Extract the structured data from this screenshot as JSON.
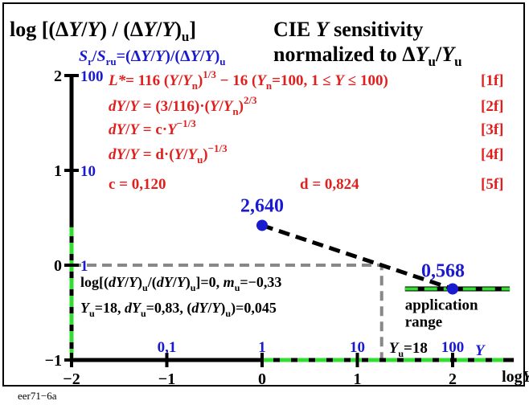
{
  "chart_data": {
    "type": "line",
    "title_left": "log [(ΔY/Y) / (ΔY/Y)u]",
    "title_right_1": "CIE Y sensitivity",
    "title_right_2": "normalized to ΔYu/Yu",
    "ylabel_inner": "Sr/Sru=(ΔY/Y)/(ΔY/Y)u",
    "xlabel": "log Y",
    "x_ticks": [
      "−2",
      "−1",
      "0",
      "1",
      "2"
    ],
    "y_ticks": [
      "2",
      "1",
      "0",
      "−1"
    ],
    "x_linear_ticks": [
      "0,1",
      "1",
      "10",
      "100"
    ],
    "x_linear_unit": "Y",
    "y_linear_ticks": [
      "100",
      "10",
      "1"
    ],
    "xlim": [
      -2,
      2.6
    ],
    "ylim": [
      -1,
      2.2
    ],
    "formulas": [
      {
        "text": "L* = 116 (Y/Yn)^1/3 − 16  (Yn=100, 1 ≤ Y ≤ 100)",
        "tag": "[1f]"
      },
      {
        "text": "dY/Y = (3/116)·(Y/Yn)^2/3",
        "tag": "[2f]"
      },
      {
        "text": "dY/Y = c·Y^−1/3",
        "tag": "[3f]"
      },
      {
        "text": "dY/Y = d·(Y/Yu)^−1/3",
        "tag": "[4f]"
      },
      {
        "text": "c = 0,120          d = 0,824",
        "tag": "[5f]"
      }
    ],
    "c_value": "c = 0,120",
    "d_value": "d = 0,824",
    "points": [
      {
        "label": "2,640",
        "x": 0.0,
        "y": 0.42
      },
      {
        "label": "0,568",
        "x": 2.0,
        "y": -0.25
      }
    ],
    "dashed_line": {
      "x": [
        0.0,
        2.0
      ],
      "y": [
        0.42,
        -0.25
      ]
    },
    "application_range": {
      "x": [
        1.5,
        2.6
      ],
      "y": -0.25,
      "label_1": "application",
      "label_2": "range"
    },
    "reference_box": {
      "x": [
        -2,
        1.255
      ],
      "y": [
        -1,
        0
      ]
    },
    "reference_line_1": "log[(dY/Y)u/(dY/Y)u]=0, mu=−0,33",
    "reference_line_2": "Yu=18, dYu=0,83, (dY/Y)u)=0,045",
    "yu_label": "Yu=18",
    "green_segments": [
      {
        "axis": "x",
        "range": [
          0,
          2.6
        ],
        "y": -1
      },
      {
        "axis": "y",
        "range": [
          -1,
          0.4
        ],
        "x": -2
      }
    ]
  },
  "footer": "eer71−6a",
  "colors": {
    "red": "#e0201e",
    "blue": "#1a1ad0",
    "green": "#33dd33",
    "black": "#000000",
    "gray": "#888888"
  }
}
